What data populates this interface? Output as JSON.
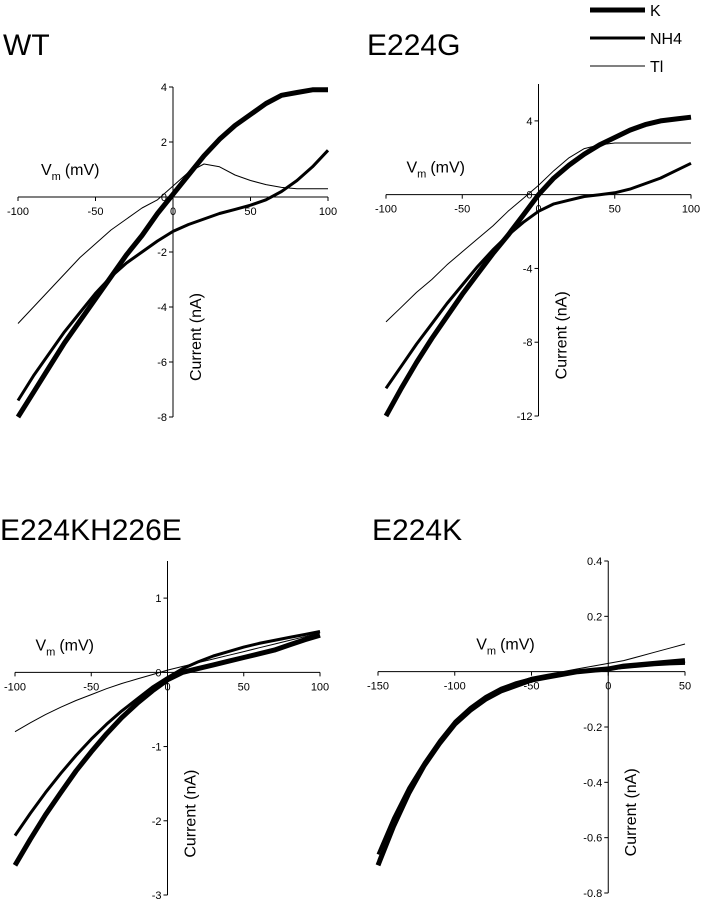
{
  "chart_data": [
    {
      "type": "line",
      "title": "WT",
      "x_label": "V",
      "x_label_subscript": "m",
      "x_label_unit": "(mV)",
      "y_label": "Current (nA)",
      "x": [
        -100,
        -90,
        -80,
        -70,
        -60,
        -50,
        -40,
        -30,
        -20,
        -10,
        0,
        10,
        20,
        30,
        40,
        50,
        60,
        70,
        80,
        90,
        100
      ],
      "xlim": [
        -100,
        100
      ],
      "xticks": [
        -100,
        -50,
        0,
        50,
        100
      ],
      "ylim": [
        -8,
        4
      ],
      "yticks": [
        -8,
        -6,
        -4,
        -2,
        0,
        2,
        4
      ],
      "series": [
        {
          "name": "K",
          "color": "#000000",
          "width": 5,
          "values": [
            -8,
            -7.1,
            -6.2,
            -5.3,
            -4.5,
            -3.7,
            -2.9,
            -2.1,
            -1.4,
            -0.6,
            0.1,
            0.8,
            1.5,
            2.1,
            2.6,
            3.0,
            3.4,
            3.7,
            3.8,
            3.9,
            3.9
          ]
        },
        {
          "name": "NH4",
          "color": "#000000",
          "width": 3,
          "values": [
            -7.4,
            -6.5,
            -5.7,
            -4.9,
            -4.2,
            -3.5,
            -2.9,
            -2.4,
            -2.0,
            -1.6,
            -1.25,
            -1.0,
            -0.8,
            -0.6,
            -0.45,
            -0.3,
            -0.1,
            0.2,
            0.6,
            1.1,
            1.7
          ]
        },
        {
          "name": "Tl",
          "color": "#000000",
          "width": 1,
          "values": [
            -4.6,
            -4.0,
            -3.4,
            -2.8,
            -2.2,
            -1.7,
            -1.2,
            -0.8,
            -0.4,
            -0.1,
            0.4,
            0.9,
            1.2,
            1.1,
            0.8,
            0.6,
            0.45,
            0.35,
            0.3,
            0.3,
            0.3
          ]
        }
      ]
    },
    {
      "type": "line",
      "title": "E224G",
      "x_label": "V",
      "x_label_subscript": "m",
      "x_label_unit": "(mV)",
      "y_label": "Current (nA)",
      "x": [
        -100,
        -90,
        -80,
        -70,
        -60,
        -50,
        -40,
        -30,
        -20,
        -10,
        0,
        10,
        20,
        30,
        40,
        50,
        60,
        70,
        80,
        90,
        100
      ],
      "xlim": [
        -100,
        100
      ],
      "xticks": [
        -100,
        -50,
        0,
        50,
        100
      ],
      "ylim": [
        -12,
        6
      ],
      "yticks": [
        -12,
        -8,
        -4,
        0,
        4
      ],
      "series": [
        {
          "name": "K",
          "color": "#000000",
          "width": 5,
          "values": [
            -12,
            -10.5,
            -9.1,
            -7.8,
            -6.6,
            -5.4,
            -4.3,
            -3.2,
            -2.2,
            -1.1,
            0,
            0.9,
            1.6,
            2.2,
            2.7,
            3.1,
            3.5,
            3.8,
            4.0,
            4.1,
            4.2
          ]
        },
        {
          "name": "NH4",
          "color": "#000000",
          "width": 3,
          "values": [
            -10.5,
            -9.3,
            -8.1,
            -7.0,
            -5.9,
            -4.9,
            -3.9,
            -3.0,
            -2.2,
            -1.5,
            -0.9,
            -0.5,
            -0.3,
            -0.1,
            0,
            0.1,
            0.3,
            0.6,
            0.9,
            1.3,
            1.7
          ]
        },
        {
          "name": "Tl",
          "color": "#000000",
          "width": 1,
          "values": [
            -6.9,
            -6.1,
            -5.3,
            -4.6,
            -3.8,
            -3.1,
            -2.4,
            -1.7,
            -0.9,
            -0.2,
            0.5,
            1.3,
            2.0,
            2.5,
            2.7,
            2.8,
            2.8,
            2.8,
            2.8,
            2.8,
            2.8
          ]
        }
      ]
    },
    {
      "type": "line",
      "title": "E224KH226E",
      "x_label": "V",
      "x_label_subscript": "m",
      "x_label_unit": "(mV)",
      "y_label": "Current (nA)",
      "x": [
        -100,
        -90,
        -80,
        -70,
        -60,
        -50,
        -40,
        -30,
        -20,
        -10,
        0,
        10,
        20,
        30,
        40,
        50,
        60,
        70,
        80,
        90,
        100
      ],
      "xlim": [
        -100,
        100
      ],
      "xticks": [
        -100,
        -50,
        0,
        50,
        100
      ],
      "ylim": [
        -3,
        1.5
      ],
      "yticks": [
        -3,
        -2,
        -1,
        0,
        1
      ],
      "series": [
        {
          "name": "K",
          "color": "#000000",
          "width": 5,
          "values": [
            -2.6,
            -2.25,
            -1.92,
            -1.62,
            -1.33,
            -1.07,
            -0.83,
            -0.61,
            -0.42,
            -0.25,
            -0.1,
            0.0,
            0.05,
            0.1,
            0.15,
            0.2,
            0.25,
            0.3,
            0.37,
            0.44,
            0.5
          ]
        },
        {
          "name": "NH4",
          "color": "#000000",
          "width": 3,
          "values": [
            -2.2,
            -1.9,
            -1.62,
            -1.36,
            -1.12,
            -0.9,
            -0.7,
            -0.52,
            -0.36,
            -0.2,
            -0.07,
            0.05,
            0.14,
            0.22,
            0.28,
            0.34,
            0.39,
            0.43,
            0.47,
            0.51,
            0.55
          ]
        },
        {
          "name": "Tl",
          "color": "#000000",
          "width": 1,
          "values": [
            -0.8,
            -0.68,
            -0.57,
            -0.47,
            -0.38,
            -0.3,
            -0.22,
            -0.15,
            -0.09,
            -0.03,
            0.03,
            0.08,
            0.13,
            0.18,
            0.23,
            0.28,
            0.33,
            0.38,
            0.43,
            0.48,
            0.53
          ]
        }
      ]
    },
    {
      "type": "line",
      "title": "E224K",
      "x_label": "V",
      "x_label_subscript": "m",
      "x_label_unit": "(mV)",
      "y_label": "Current (nA)",
      "x": [
        -150,
        -140,
        -130,
        -120,
        -110,
        -100,
        -90,
        -80,
        -70,
        -60,
        -50,
        -40,
        -30,
        -20,
        -10,
        0,
        10,
        20,
        30,
        40,
        50
      ],
      "xlim": [
        -150,
        50
      ],
      "xticks": [
        -150,
        -100,
        -50,
        0,
        50
      ],
      "ylim": [
        -0.8,
        0.4
      ],
      "yticks": [
        -0.8,
        -0.6,
        -0.4,
        -0.2,
        0.2,
        0.4
      ],
      "series": [
        {
          "name": "K",
          "color": "#000000",
          "width": 5,
          "values": [
            -0.7,
            -0.56,
            -0.44,
            -0.34,
            -0.26,
            -0.19,
            -0.14,
            -0.1,
            -0.07,
            -0.05,
            -0.03,
            -0.02,
            -0.01,
            0,
            0.005,
            0.01,
            0.02,
            0.025,
            0.03,
            0.035,
            0.04
          ]
        },
        {
          "name": "NH4",
          "color": "#000000",
          "width": 3,
          "values": [
            -0.66,
            -0.53,
            -0.42,
            -0.33,
            -0.25,
            -0.18,
            -0.13,
            -0.09,
            -0.06,
            -0.04,
            -0.025,
            -0.015,
            -0.005,
            0,
            0.005,
            0.01,
            0.015,
            0.02,
            0.025,
            0.028,
            0.03
          ]
        },
        {
          "name": "Tl",
          "color": "#000000",
          "width": 1,
          "values": [
            -0.68,
            -0.54,
            -0.43,
            -0.33,
            -0.25,
            -0.18,
            -0.13,
            -0.09,
            -0.06,
            -0.04,
            -0.02,
            -0.01,
            0,
            0.01,
            0.02,
            0.03,
            0.04,
            0.055,
            0.07,
            0.085,
            0.1
          ]
        }
      ]
    }
  ]
}
